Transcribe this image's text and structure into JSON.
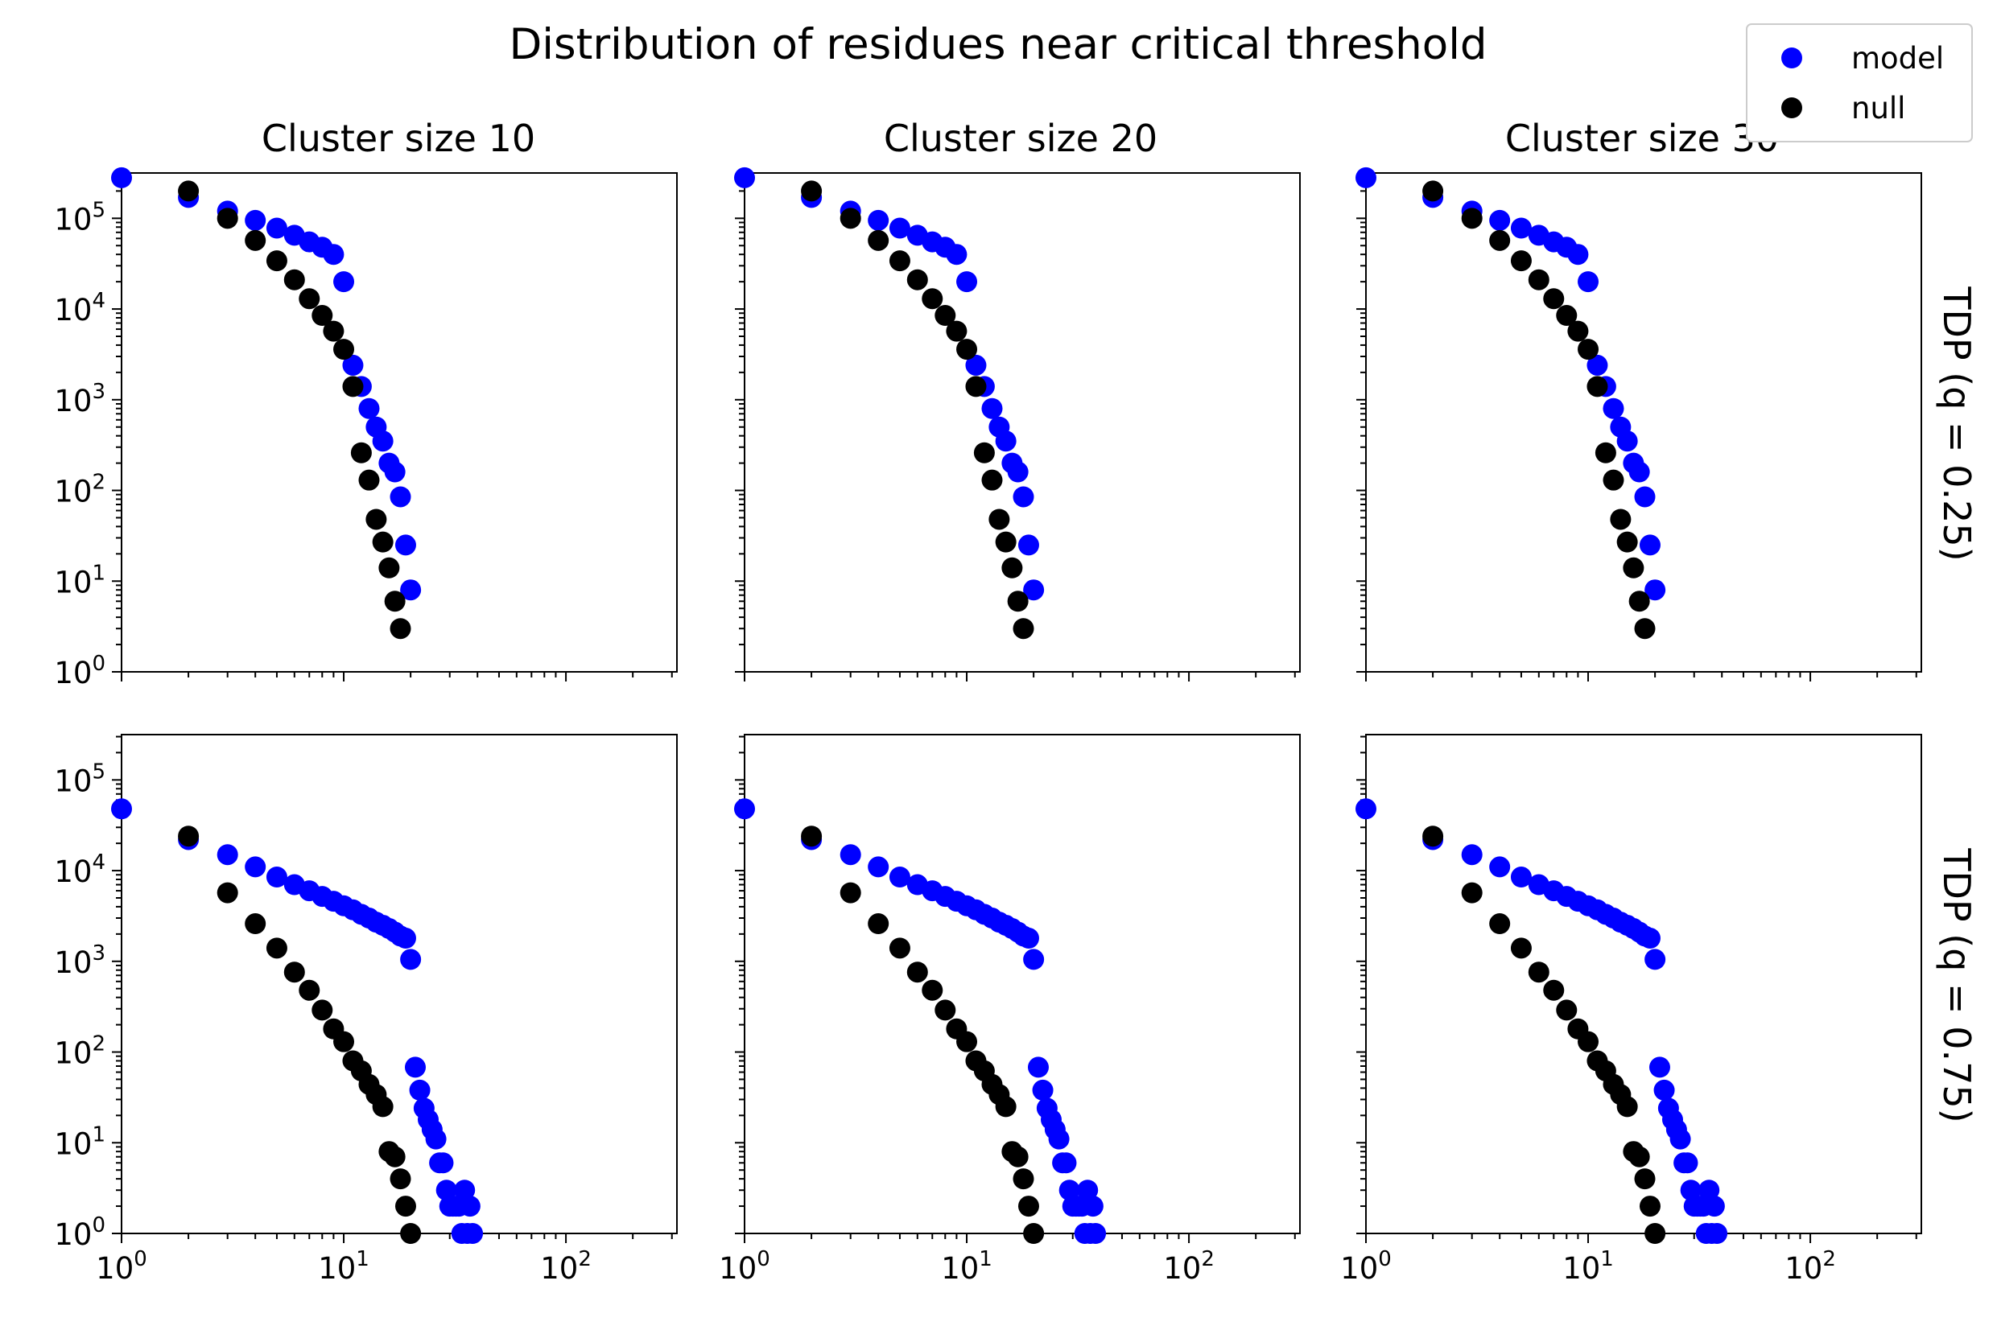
{
  "chart_data": {
    "type": "scatter",
    "title": "Distribution of residues near critical threshold",
    "xscale": "log",
    "yscale": "log",
    "xlim": [
      1,
      316
    ],
    "ylim": [
      1,
      316000
    ],
    "x_tick_labels": [
      "10⁰",
      "10¹",
      "10²"
    ],
    "y_tick_labels": [
      "10⁰",
      "10¹",
      "10²",
      "10³",
      "10⁴",
      "10⁵"
    ],
    "legend": {
      "position": "top-right",
      "entries": [
        {
          "label": "model",
          "color": "#0000ff"
        },
        {
          "label": "null",
          "color": "#000000"
        }
      ]
    },
    "grid": false,
    "col_titles": [
      "Cluster size 10",
      "Cluster size 20",
      "Cluster size 30"
    ],
    "row_labels": [
      "TDP (q = 0.25)",
      "TDP (q = 0.75)"
    ],
    "panels_note_same_data_across_columns": true,
    "rows": [
      {
        "label": "TDP (q = 0.25)",
        "series": [
          {
            "name": "model",
            "color": "#0000ff",
            "x": [
              1,
              2,
              3,
              4,
              5,
              6,
              7,
              8,
              9,
              10,
              11,
              12,
              13,
              14,
              15,
              16,
              17,
              18,
              19,
              20
            ],
            "y": [
              280000,
              170000,
              120000,
              95000,
              78000,
              65000,
              55000,
              48000,
              40000,
              20000,
              2400,
              1400,
              800,
              500,
              350,
              200,
              160,
              85,
              25,
              8
            ]
          },
          {
            "name": "null",
            "color": "#000000",
            "x": [
              2,
              3,
              4,
              5,
              6,
              7,
              8,
              9,
              10,
              11,
              12,
              13,
              14,
              15,
              16,
              17,
              18
            ],
            "y": [
              200000,
              100000,
              57000,
              34000,
              21000,
              13000,
              8500,
              5700,
              3600,
              1400,
              260,
              130,
              48,
              27,
              14,
              6,
              3
            ]
          }
        ]
      },
      {
        "label": "TDP (q = 0.75)",
        "series": [
          {
            "name": "model",
            "color": "#0000ff",
            "x": [
              1,
              2,
              3,
              4,
              5,
              6,
              7,
              8,
              9,
              10,
              11,
              12,
              13,
              14,
              15,
              16,
              17,
              18,
              19,
              20,
              21,
              22,
              23,
              24,
              25,
              26,
              27,
              28,
              29,
              30,
              31,
              32,
              33,
              34,
              35,
              36,
              37,
              38
            ],
            "y": [
              48000,
              22000,
              15000,
              11000,
              8500,
              7000,
              6000,
              5200,
              4600,
              4100,
              3700,
              3300,
              3000,
              2700,
              2500,
              2300,
              2100,
              1900,
              1800,
              1050,
              68,
              38,
              24,
              18,
              14,
              11,
              6,
              6,
              3,
              2,
              2,
              2,
              2,
              1,
              3,
              1,
              2,
              1
            ]
          },
          {
            "name": "null",
            "color": "#000000",
            "x": [
              2,
              3,
              4,
              5,
              6,
              7,
              8,
              9,
              10,
              11,
              12,
              13,
              14,
              15,
              16,
              17,
              18,
              19,
              20
            ],
            "y": [
              24000,
              5700,
              2600,
              1400,
              760,
              480,
              290,
              180,
              130,
              80,
              62,
              44,
              34,
              25,
              8,
              7,
              4,
              2,
              1
            ]
          }
        ]
      }
    ]
  }
}
